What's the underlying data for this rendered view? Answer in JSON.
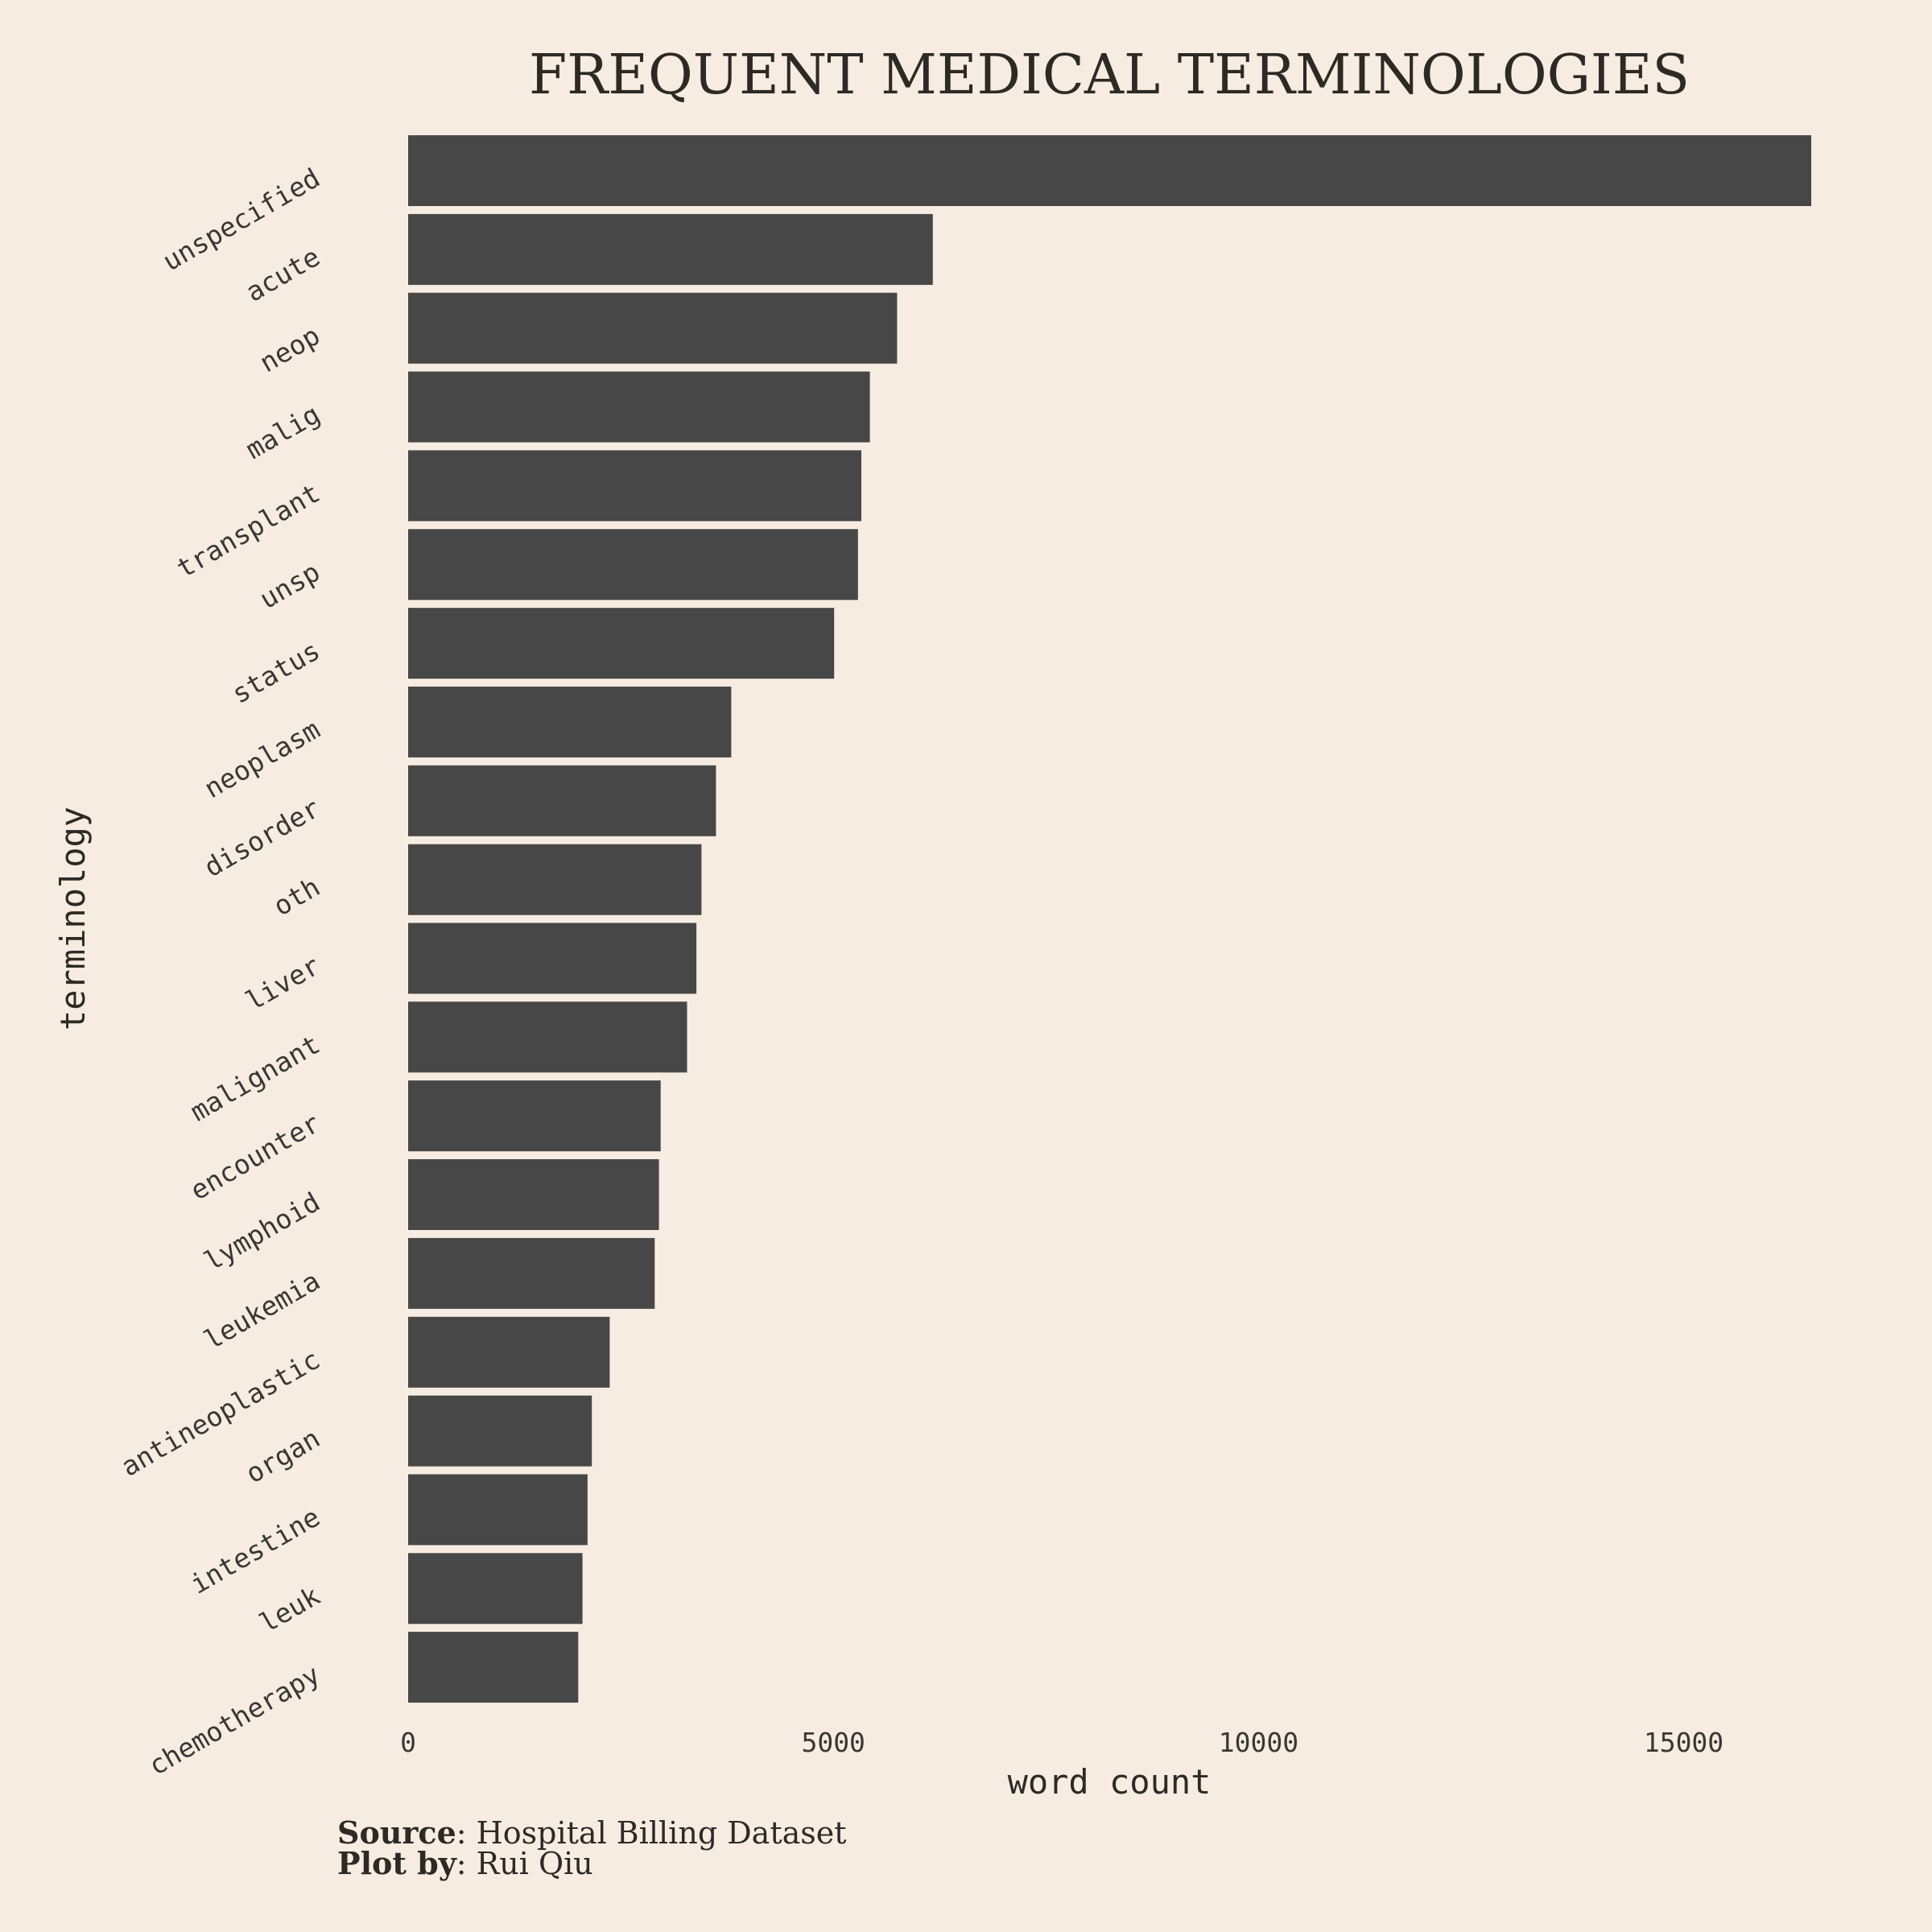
{
  "colors": {
    "background": "#f7ece1",
    "bar": "#474747",
    "text": "#2d2a26"
  },
  "chart_data": {
    "type": "bar",
    "orientation": "horizontal",
    "title": "FREQUENT MEDICAL TERMINOLOGIES",
    "xlabel": "word count",
    "ylabel": "terminology",
    "categories": [
      "unspecified",
      "acute",
      "neop",
      "malig",
      "transplant",
      "unsp",
      "status",
      "neoplasm",
      "disorder",
      "oth",
      "liver",
      "malignant",
      "encounter",
      "lymphoid",
      "leukemia",
      "antineoplastic",
      "organ",
      "intestine",
      "leuk",
      "chemotherapy"
    ],
    "values": [
      16500,
      6170,
      5750,
      5430,
      5330,
      5290,
      5010,
      3800,
      3620,
      3450,
      3390,
      3280,
      2970,
      2950,
      2900,
      2370,
      2160,
      2110,
      2050,
      2000
    ],
    "xlim": [
      0,
      16500
    ],
    "xticks": [
      "0",
      "5000",
      "10000",
      "15000"
    ],
    "grid": false,
    "legend": "none"
  },
  "caption": {
    "source_label": "Source",
    "source_value": ": Hospital Billing Dataset",
    "plotby_label": "Plot by",
    "plotby_value": ": Rui Qiu"
  }
}
